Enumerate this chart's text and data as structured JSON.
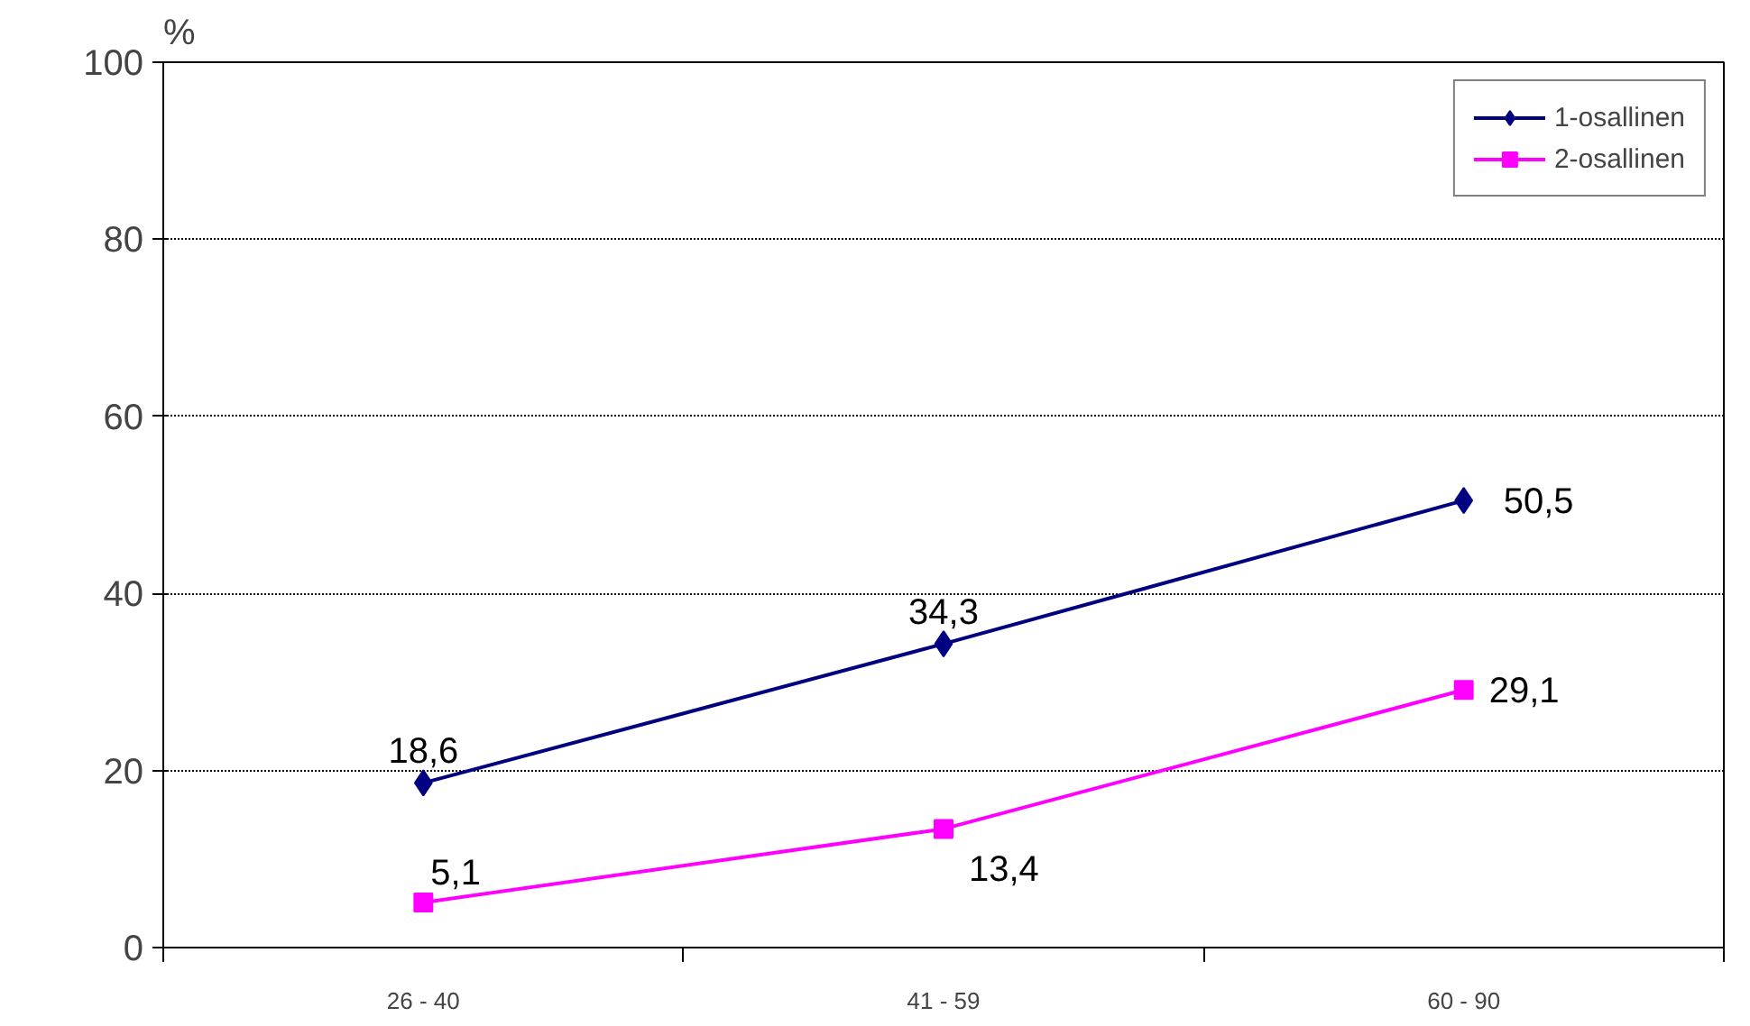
{
  "chart_data": {
    "type": "line",
    "ylabel": "%",
    "categories": [
      "26 - 40",
      "41 - 59",
      "60 - 90"
    ],
    "ylim": [
      0,
      100
    ],
    "yticks": [
      0,
      20,
      40,
      60,
      80,
      100
    ],
    "grid": "y",
    "legend": "top right",
    "series": [
      {
        "name": "1-osallinen",
        "color": "#000080",
        "marker": "diamond",
        "values": [
          18.6,
          34.3,
          50.5
        ],
        "value_labels": [
          "18,6",
          "34,3",
          "50,5"
        ]
      },
      {
        "name": "2-osallinen",
        "color": "#ff00ff",
        "marker": "square",
        "values": [
          5.1,
          13.4,
          29.1
        ],
        "value_labels": [
          "5,1",
          "13,4",
          "29,1"
        ]
      }
    ]
  }
}
